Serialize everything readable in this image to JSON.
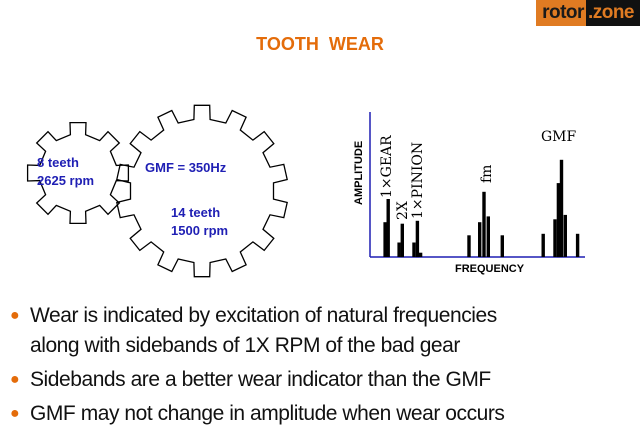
{
  "logo": {
    "part1": "rotor",
    "part2": ".zone"
  },
  "title": "TOOTH  WEAR",
  "gears": {
    "pinion": {
      "teeth_label": "8 teeth",
      "rpm_label": "2625 rpm",
      "teeth": 8
    },
    "gear": {
      "teeth_label": "14 teeth",
      "rpm_label": "1500 rpm",
      "teeth": 14
    },
    "gmf_label": "GMF = 350Hz",
    "outline_color": "#000000",
    "text_color": "#1f1fb4"
  },
  "spectrum": {
    "ylabel": "AMPLITUDE",
    "xlabel": "FREQUENCY",
    "axis_color": "#1f1fb4",
    "peak_labels": [
      "1×GEAR",
      "2X",
      "1×PINION",
      "fm",
      "GMF"
    ],
    "bars": [
      {
        "f": 7,
        "a": 24
      },
      {
        "f": 8.4,
        "a": 40
      },
      {
        "f": 13.5,
        "a": 10
      },
      {
        "f": 15,
        "a": 23
      },
      {
        "f": 20.4,
        "a": 10
      },
      {
        "f": 22,
        "a": 25
      },
      {
        "f": 23.5,
        "a": 3
      },
      {
        "f": 46,
        "a": 15
      },
      {
        "f": 51,
        "a": 24
      },
      {
        "f": 53,
        "a": 45
      },
      {
        "f": 55,
        "a": 28
      },
      {
        "f": 61.5,
        "a": 15
      },
      {
        "f": 80.5,
        "a": 16
      },
      {
        "f": 86,
        "a": 26
      },
      {
        "f": 87.6,
        "a": 51
      },
      {
        "f": 89,
        "a": 67
      },
      {
        "f": 90.8,
        "a": 29
      },
      {
        "f": 96.5,
        "a": 16
      }
    ]
  },
  "bullets": [
    {
      "lines": [
        "Wear is indicated by excitation of natural frequencies",
        "along with sidebands of 1X RPM of the bad gear"
      ]
    },
    {
      "lines": [
        "Sidebands are a better wear indicator than the GMF"
      ]
    },
    {
      "lines": [
        "GMF may not change in amplitude when wear occurs"
      ]
    }
  ],
  "bullet_color": "#e46c0a",
  "title_color": "#e46c0a"
}
